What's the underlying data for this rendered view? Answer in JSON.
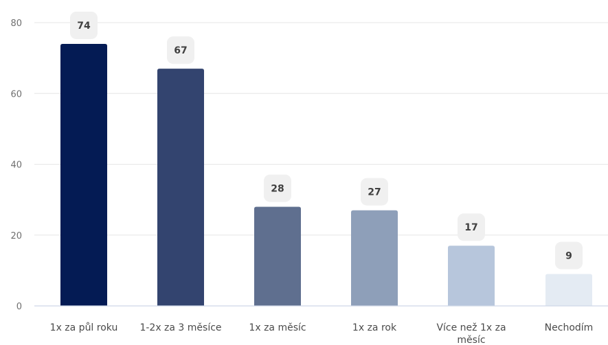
{
  "chart_data": {
    "type": "bar",
    "title": "",
    "xlabel": "",
    "ylabel": "",
    "categories": [
      [
        "1x za půl roku"
      ],
      [
        "1-2x za 3 měsíce"
      ],
      [
        "1x za měsíc"
      ],
      [
        "1x za rok"
      ],
      [
        "Více než 1x za",
        "měsíc"
      ],
      [
        "Nechodím"
      ]
    ],
    "values": [
      74,
      67,
      28,
      27,
      17,
      9
    ],
    "ylim": [
      0,
      80
    ],
    "yticks": [
      0,
      20,
      40,
      60,
      80
    ],
    "grid": true,
    "data_labels": true,
    "colors": [
      "#041b54",
      "#33446f",
      "#5f6f8f",
      "#8e9fb9",
      "#b7c6dc",
      "#e4ebf3"
    ],
    "gridline_color": "#e6e6e6",
    "axis_color": "#cfd8e6",
    "label_badge_color": "#f0f0f0"
  }
}
